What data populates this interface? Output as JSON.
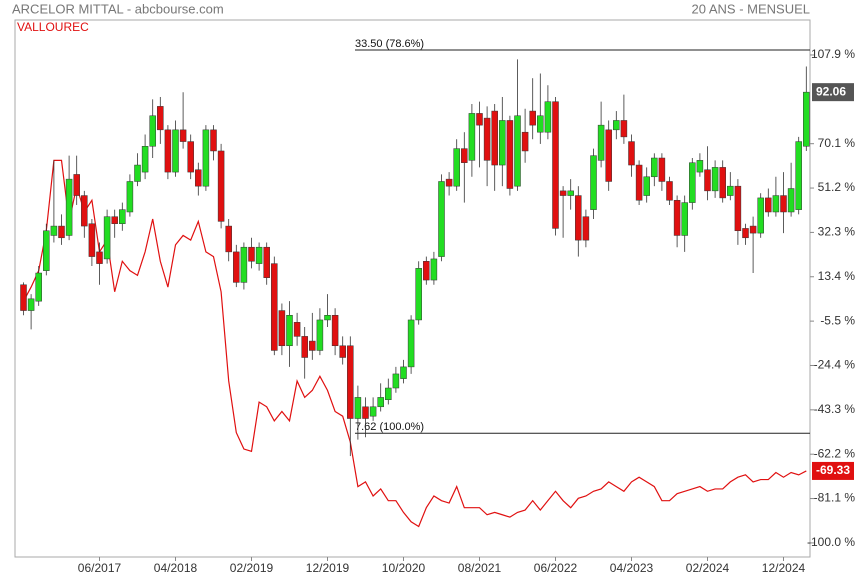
{
  "chart_data": {
    "type": "candlestick",
    "title": "ARCELOR MITTAL - abcbourse.com",
    "subtitle": "20 ANS - MENSUEL",
    "categories": [
      null,
      null,
      null,
      null,
      null,
      null,
      null,
      null,
      null,
      null,
      "06/2017",
      null,
      null,
      null,
      null,
      null,
      null,
      null,
      null,
      null,
      "04/2018",
      null,
      null,
      null,
      null,
      null,
      null,
      null,
      null,
      null,
      "02/2019",
      null,
      null,
      null,
      null,
      null,
      null,
      null,
      null,
      null,
      "12/2019",
      null,
      null,
      null,
      null,
      null,
      null,
      null,
      null,
      null,
      "10/2020",
      null,
      null,
      null,
      null,
      null,
      null,
      null,
      null,
      null,
      "08/2021",
      null,
      null,
      null,
      null,
      null,
      null,
      null,
      null,
      null,
      "06/2022",
      null,
      null,
      null,
      null,
      null,
      null,
      null,
      null,
      null,
      "04/2023",
      null,
      null,
      null,
      null,
      null,
      null,
      null,
      null,
      null,
      "02/2024",
      null,
      null,
      null,
      null,
      null,
      null,
      null,
      null,
      null,
      "12/2024",
      null,
      null,
      null
    ],
    "open": [
      10,
      -1,
      3,
      16,
      31,
      35,
      31,
      57,
      48,
      36,
      24,
      21,
      39,
      36,
      41,
      54,
      58,
      69,
      86,
      76,
      58,
      76,
      71,
      59,
      52,
      76,
      67,
      35,
      24,
      11,
      26,
      19,
      26,
      19,
      -1,
      -16,
      -6,
      -12,
      -14,
      -18,
      -5,
      -3,
      -16,
      -16,
      -47,
      -42,
      -46,
      -42,
      -39,
      -34,
      -30,
      -25,
      -5,
      20,
      12,
      22,
      55,
      52,
      68,
      63,
      83,
      81,
      84,
      61,
      80,
      52,
      75,
      84,
      75,
      75,
      88,
      50,
      48,
      48,
      39,
      42,
      63,
      76,
      76,
      80,
      71,
      61,
      48,
      56,
      64,
      54,
      46,
      31,
      45,
      58,
      59,
      50,
      60,
      48,
      52,
      34,
      35,
      32,
      47,
      41,
      48,
      41,
      42,
      69
    ],
    "high": [
      11,
      6,
      18,
      36,
      63,
      40,
      65,
      65,
      50,
      38,
      28,
      42,
      42,
      45,
      57,
      66,
      74,
      89,
      90,
      78,
      80,
      92,
      74,
      62,
      78,
      78,
      70,
      38,
      27,
      28,
      30,
      28,
      28,
      22,
      2,
      3,
      -2,
      -8,
      -2,
      0,
      6,
      0,
      -12,
      -12,
      -33,
      -38,
      -38,
      -32,
      -30,
      -25,
      -22,
      -3,
      20,
      22,
      24,
      57,
      58,
      72,
      75,
      87,
      88,
      86,
      87,
      90,
      82,
      106,
      85,
      98,
      100,
      95,
      90,
      52,
      55,
      52,
      42,
      68,
      88,
      80,
      84,
      91,
      74,
      63,
      60,
      66,
      66,
      56,
      48,
      48,
      64,
      66,
      69,
      63,
      63,
      58,
      55,
      36,
      39,
      49,
      51,
      56,
      58,
      62,
      73,
      103
    ],
    "low": [
      -3,
      -9,
      1,
      14,
      28,
      27,
      29,
      44,
      30,
      18,
      10,
      19,
      30,
      33,
      39,
      52,
      55,
      64,
      70,
      55,
      56,
      68,
      55,
      48,
      50,
      63,
      34,
      20,
      9,
      8,
      17,
      16,
      10,
      -20,
      -20,
      -25,
      -16,
      -30,
      -22,
      -20,
      -8,
      -20,
      -24,
      -63,
      -56,
      -55,
      -48,
      -44,
      -41,
      -36,
      -32,
      -28,
      -7,
      10,
      10,
      20,
      48,
      50,
      45,
      56,
      60,
      52,
      50,
      52,
      48,
      50,
      62,
      72,
      70,
      72,
      31,
      30,
      42,
      22,
      26,
      38,
      60,
      50,
      72,
      70,
      56,
      44,
      45,
      52,
      50,
      44,
      26,
      24,
      42,
      56,
      46,
      47,
      45,
      46,
      27,
      27,
      15,
      30,
      39,
      39,
      32,
      39,
      40,
      67
    ],
    "close": [
      -1,
      4,
      15,
      33,
      35,
      30,
      55,
      48,
      35,
      22,
      19,
      39,
      36,
      42,
      54,
      61,
      69,
      82,
      76,
      58,
      76,
      71,
      58,
      52,
      76,
      67,
      37,
      24,
      11,
      26,
      20,
      26,
      13,
      -18,
      -16,
      -3,
      -12,
      -21,
      -18,
      -5,
      -3,
      -16,
      -21,
      -47,
      -38,
      -47,
      -42,
      -38,
      -34,
      -28,
      -25,
      -5,
      17,
      12,
      21,
      54,
      52,
      68,
      62,
      83,
      78,
      63,
      61,
      80,
      51,
      82,
      67,
      78,
      82,
      88,
      34,
      48,
      50,
      29,
      29,
      65,
      78,
      54,
      80,
      73,
      61,
      46,
      56,
      64,
      54,
      46,
      31,
      45,
      62,
      63,
      50,
      60,
      47,
      52,
      33,
      30,
      32,
      47,
      41,
      48,
      41,
      51,
      71,
      92.06
    ],
    "up_color": "#22dd22",
    "down_color": "#e01010",
    "last_color": "#555555",
    "series": [
      {
        "name": "VALLOUREC",
        "color": "#e01010",
        "values": [
          3,
          9,
          16,
          33,
          63,
          63,
          37,
          52,
          41,
          46,
          24,
          29,
          7,
          20,
          16,
          14,
          24,
          38,
          20,
          9,
          27,
          31,
          29,
          37,
          24,
          22,
          7,
          -31,
          -53,
          -60,
          -61,
          -40,
          -42,
          -48,
          -44,
          -48,
          -31,
          -38,
          -35,
          -29,
          -35,
          -44,
          -46,
          -57,
          -76,
          -74,
          -80,
          -77,
          -82,
          -82,
          -87,
          -91,
          -93,
          -85,
          -80,
          -82,
          -83,
          -76,
          -85,
          -85,
          -85,
          -88,
          -87,
          -88,
          -89,
          -87,
          -86,
          -82,
          -86,
          -82,
          -78,
          -82,
          -85,
          -81,
          -80,
          -78,
          -77,
          -74,
          -76,
          -78,
          -74,
          -72,
          -74,
          -76,
          -82,
          -82,
          -79,
          -78,
          -77,
          -76,
          -78,
          -77,
          -77,
          -74,
          -72,
          -71,
          -74,
          -73,
          -73,
          -70,
          -72,
          -70,
          -71,
          -69.33
        ]
      }
    ],
    "annotations": [
      {
        "text": "33.50  (78.6%)",
        "value": 110.0
      },
      {
        "text": "7.62  (100.0%)",
        "value": -53.3
      }
    ],
    "ylim": [
      -106.0,
      122.8
    ],
    "yticks": [
      {
        "value": 107.9,
        "label": "107.9 %"
      },
      {
        "value": 70.1,
        "label": "70.1 %"
      },
      {
        "value": 51.2,
        "label": "51.2 %"
      },
      {
        "value": 32.3,
        "label": "32.3 %"
      },
      {
        "value": 13.4,
        "label": "13.4 %"
      },
      {
        "value": -5.5,
        "label": "-5.5 %"
      },
      {
        "value": -24.4,
        "label": "-24.4 %"
      },
      {
        "value": -43.3,
        "label": "-43.3 %"
      },
      {
        "value": -62.2,
        "label": "-62.2 %"
      },
      {
        "value": -81.1,
        "label": "-81.1 %"
      },
      {
        "value": -100.0,
        "label": "-100.0 %"
      }
    ]
  }
}
